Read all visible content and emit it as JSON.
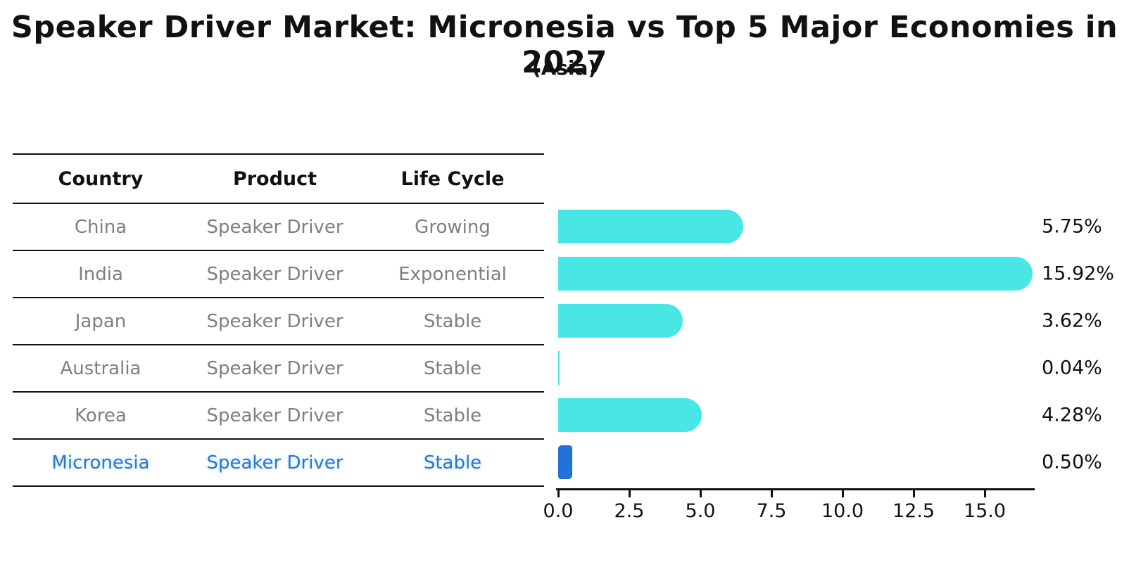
{
  "title": "Speaker Driver Market: Micronesia vs Top 5 Major Economies in 2027",
  "subtitle": "(Asia)",
  "table": {
    "headers": [
      "Country",
      "Product",
      "Life Cycle"
    ],
    "rows": [
      {
        "country": "China",
        "product": "Speaker Driver",
        "life_cycle": "Growing"
      },
      {
        "country": "India",
        "product": "Speaker Driver",
        "life_cycle": "Exponential"
      },
      {
        "country": "Japan",
        "product": "Speaker Driver",
        "life_cycle": "Stable"
      },
      {
        "country": "Australia",
        "product": "Speaker Driver",
        "life_cycle": "Stable"
      },
      {
        "country": "Korea",
        "product": "Speaker Driver",
        "life_cycle": "Stable"
      },
      {
        "country": "Micronesia",
        "product": "Speaker Driver",
        "life_cycle": "Stable"
      }
    ],
    "highlighted_row": "Micronesia"
  },
  "chart_data": {
    "type": "bar",
    "orientation": "horizontal",
    "categories": [
      "China",
      "India",
      "Japan",
      "Australia",
      "Korea",
      "Micronesia"
    ],
    "values": [
      5.75,
      15.92,
      3.62,
      0.04,
      4.28,
      0.5
    ],
    "value_labels": [
      "5.75%",
      "15.92%",
      "3.62%",
      "0.04%",
      "4.28%",
      "0.50%"
    ],
    "xticks": [
      0.0,
      2.5,
      5.0,
      7.5,
      10.0,
      12.5,
      15.0
    ],
    "xtick_labels": [
      "0.0",
      "2.5",
      "5.0",
      "7.5",
      "10.0",
      "12.5",
      "15.0"
    ],
    "xlim": [
      0,
      16.8
    ],
    "grid": false,
    "legend": false,
    "bar_color": "#48E7E6",
    "highlight_color": "#2173DB",
    "highlight_index": 5
  },
  "colors": {
    "bar_cyan": "#48E7E6",
    "bar_blue": "#2173DB",
    "table_text_gray": "#7f7f7f",
    "highlight_text_blue": "#2878CE",
    "axis_black": "#111111"
  }
}
